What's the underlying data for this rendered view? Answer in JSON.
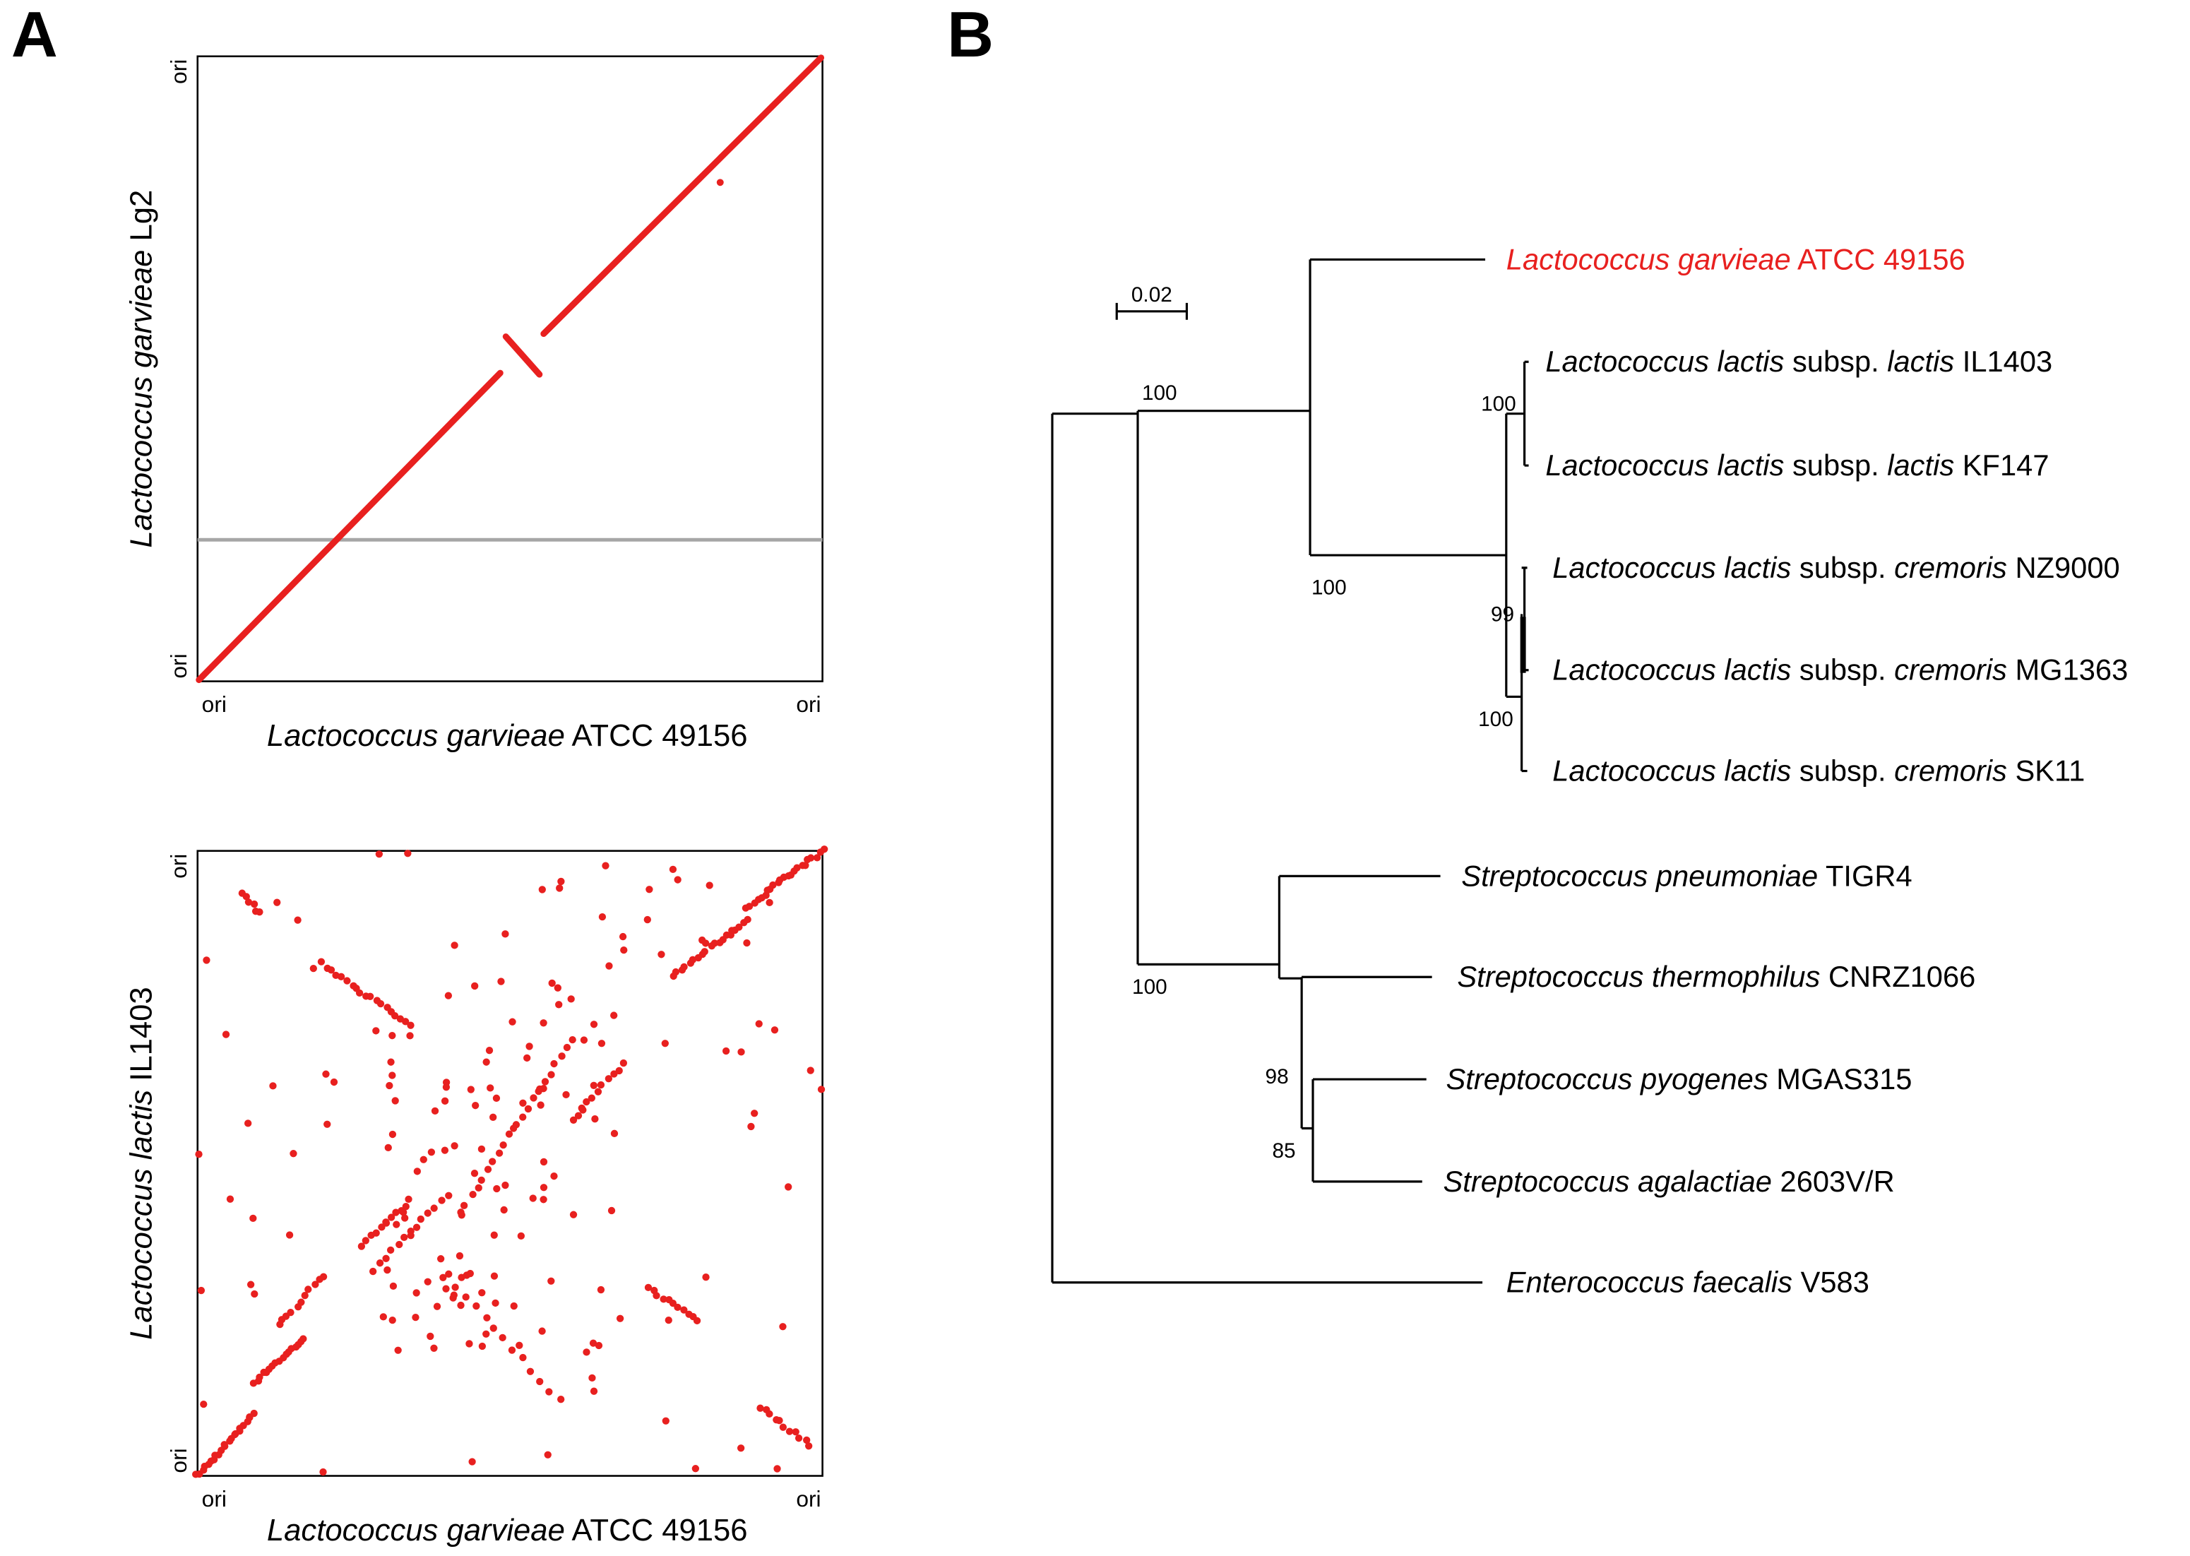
{
  "panel_a": {
    "label": "A",
    "plots": [
      {
        "y_label": [
          {
            "text": "Lactococcus garvieae",
            "italic": true
          },
          {
            "text": " Lg2",
            "italic": false
          }
        ],
        "x_label": [
          {
            "text": "Lactococcus garvieae",
            "italic": true
          },
          {
            "text": " ATCC 49156",
            "italic": false
          }
        ],
        "origin_labels": {
          "y_bottom": "ori",
          "y_top": "ori",
          "x_left": "ori",
          "x_right": "ori"
        }
      },
      {
        "y_label": [
          {
            "text": "Lactococcus lactis",
            "italic": true
          },
          {
            "text": " IL1403",
            "italic": false
          }
        ],
        "x_label": [
          {
            "text": "Lactococcus garvieae",
            "italic": true
          },
          {
            "text": " ATCC 49156",
            "italic": false
          }
        ],
        "origin_labels": {
          "y_bottom": "ori",
          "y_top": "ori",
          "x_left": "ori",
          "x_right": "ori"
        }
      }
    ]
  },
  "panel_b": {
    "label": "B",
    "scale_bar": "0.02",
    "leaves": [
      {
        "name": [
          {
            "text": "Lactococcus garvieae",
            "italic": true
          },
          {
            "text": " ATCC 49156",
            "italic": false
          }
        ],
        "color": "#e8201f"
      },
      {
        "name": [
          {
            "text": "Lactococcus lactis",
            "italic": true
          },
          {
            "text": " subsp. ",
            "italic": false
          },
          {
            "text": "lactis",
            "italic": true
          },
          {
            "text": " IL1403",
            "italic": false
          }
        ],
        "color": "#000000"
      },
      {
        "name": [
          {
            "text": "Lactococcus lactis",
            "italic": true
          },
          {
            "text": " subsp. ",
            "italic": false
          },
          {
            "text": "lactis",
            "italic": true
          },
          {
            "text": " KF147",
            "italic": false
          }
        ],
        "color": "#000000"
      },
      {
        "name": [
          {
            "text": "Lactococcus lactis",
            "italic": true
          },
          {
            "text": " subsp. ",
            "italic": false
          },
          {
            "text": "cremoris",
            "italic": true
          },
          {
            "text": " NZ9000",
            "italic": false
          }
        ],
        "color": "#000000"
      },
      {
        "name": [
          {
            "text": "Lactococcus lactis",
            "italic": true
          },
          {
            "text": " subsp. ",
            "italic": false
          },
          {
            "text": "cremoris",
            "italic": true
          },
          {
            "text": " MG1363",
            "italic": false
          }
        ],
        "color": "#000000"
      },
      {
        "name": [
          {
            "text": "Lactococcus lactis",
            "italic": true
          },
          {
            "text": " subsp. ",
            "italic": false
          },
          {
            "text": "cremoris",
            "italic": true
          },
          {
            "text": " SK11",
            "italic": false
          }
        ],
        "color": "#000000"
      },
      {
        "name": [
          {
            "text": "Streptococcus pneumoniae",
            "italic": true
          },
          {
            "text": " TIGR4",
            "italic": false
          }
        ],
        "color": "#000000"
      },
      {
        "name": [
          {
            "text": "Streptococcus thermophilus",
            "italic": true
          },
          {
            "text": " CNRZ1066",
            "italic": false
          }
        ],
        "color": "#000000"
      },
      {
        "name": [
          {
            "text": "Streptococcus pyogenes",
            "italic": true
          },
          {
            "text": " MGAS315",
            "italic": false
          }
        ],
        "color": "#000000"
      },
      {
        "name": [
          {
            "text": "Streptococcus agalactiae",
            "italic": true
          },
          {
            "text": " 2603V/R",
            "italic": false
          }
        ],
        "color": "#000000"
      },
      {
        "name": [
          {
            "text": "Enterococcus faecalis",
            "italic": true
          },
          {
            "text": " V583",
            "italic": false
          }
        ],
        "color": "#000000"
      }
    ],
    "bootstrap": [
      100,
      100,
      100,
      99,
      100,
      100,
      98,
      85
    ]
  }
}
